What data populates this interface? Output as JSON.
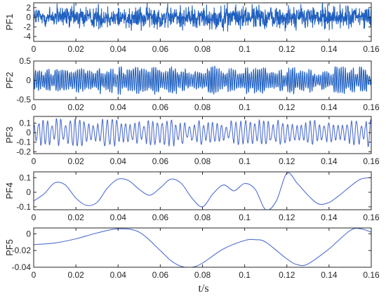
{
  "chart_data": [
    {
      "type": "line",
      "ylabel": "PF1",
      "xlim": [
        0,
        0.16
      ],
      "ylim": [
        -5,
        3
      ],
      "xticks": [
        "0",
        "0.02",
        "0.04",
        "0.06",
        "0.08",
        "0.1",
        "0.12",
        "0.14",
        "0.16"
      ],
      "yticks": [
        "2",
        "0",
        "-2",
        "-4"
      ],
      "ytick_values": [
        2,
        0,
        -2,
        -4
      ],
      "series": [
        {
          "color": "#1f5fbf",
          "style": "high-frequency noise",
          "amplitude": 2.2,
          "x_range": [
            0,
            0.16
          ],
          "points": 1200
        }
      ]
    },
    {
      "type": "line",
      "ylabel": "PF2",
      "xlim": [
        0,
        0.16
      ],
      "ylim": [
        -0.5,
        0.5
      ],
      "xticks": [
        "0",
        "0.02",
        "0.04",
        "0.06",
        "0.08",
        "0.1",
        "0.12",
        "0.14",
        "0.16"
      ],
      "yticks": [
        "0.5",
        "0",
        "-0.5"
      ],
      "ytick_values": [
        0.5,
        0,
        -0.5
      ],
      "series": [
        {
          "color": "#1f5fbf",
          "style": "oscillation",
          "amplitude": 0.3,
          "x_range": [
            0,
            0.16
          ],
          "points": 640
        }
      ]
    },
    {
      "type": "line",
      "ylabel": "PF3",
      "xlim": [
        0,
        0.16
      ],
      "ylim": [
        -0.22,
        0.17
      ],
      "xticks": [
        "0",
        "0.02",
        "0.04",
        "0.06",
        "0.08",
        "0.1",
        "0.12",
        "0.14",
        "0.16"
      ],
      "yticks": [
        "0.1",
        "0",
        "-0.1",
        "-0.2"
      ],
      "ytick_values": [
        0.1,
        0,
        -0.1,
        -0.2
      ],
      "series": [
        {
          "color": "#4f6fd0",
          "style": "oscillation",
          "amplitude": 0.12,
          "x_range": [
            0,
            0.16
          ],
          "points": 480
        }
      ]
    },
    {
      "type": "line",
      "ylabel": "PF4",
      "xlim": [
        0,
        0.16
      ],
      "ylim": [
        -0.12,
        0.14
      ],
      "xticks": [
        "0",
        "0.02",
        "0.04",
        "0.06",
        "0.08",
        "0.1",
        "0.12",
        "0.14",
        "0.16"
      ],
      "yticks": [
        "0.1",
        "0",
        "-0.1"
      ],
      "ytick_values": [
        0.1,
        0,
        -0.1
      ],
      "series": [
        {
          "color": "#4f6fd0",
          "style": "smooth",
          "x": [
            0,
            0.005,
            0.01,
            0.015,
            0.02,
            0.025,
            0.03,
            0.035,
            0.04,
            0.045,
            0.05,
            0.055,
            0.06,
            0.065,
            0.07,
            0.075,
            0.08,
            0.085,
            0.09,
            0.095,
            0.1,
            0.105,
            0.11,
            0.115,
            0.12,
            0.125,
            0.13,
            0.135,
            0.14,
            0.145,
            0.15,
            0.155,
            0.16
          ],
          "y": [
            -0.06,
            -0.01,
            0.065,
            0.05,
            -0.04,
            -0.09,
            -0.07,
            0.03,
            0.09,
            0.08,
            0.02,
            -0.02,
            0.03,
            0.09,
            0.06,
            -0.04,
            -0.1,
            -0.01,
            0.05,
            0.01,
            0.06,
            0.02,
            -0.12,
            -0.06,
            0.13,
            0.06,
            -0.02,
            -0.08,
            -0.07,
            -0.02,
            0.04,
            0.09,
            0.1
          ]
        }
      ]
    },
    {
      "type": "line",
      "ylabel": "PF5",
      "xlim": [
        0,
        0.16
      ],
      "ylim": [
        -0.04,
        0.007
      ],
      "xticks": [
        "0",
        "0.02",
        "0.04",
        "0.06",
        "0.08",
        "0.1",
        "0.12",
        "0.14",
        "0.16"
      ],
      "yticks": [
        "0",
        "-0.02",
        "-0.04"
      ],
      "ytick_values": [
        0,
        -0.02,
        -0.04
      ],
      "series": [
        {
          "color": "#4f6fd0",
          "style": "smooth",
          "x": [
            0,
            0.01,
            0.02,
            0.03,
            0.04,
            0.05,
            0.06,
            0.065,
            0.07,
            0.075,
            0.08,
            0.09,
            0.1,
            0.105,
            0.11,
            0.12,
            0.125,
            0.13,
            0.14,
            0.15,
            0.155,
            0.16
          ],
          "y": [
            -0.013,
            -0.011,
            -0.006,
            0.001,
            0.006,
            0.002,
            -0.02,
            -0.032,
            -0.039,
            -0.04,
            -0.035,
            -0.018,
            -0.008,
            -0.007,
            -0.01,
            -0.03,
            -0.037,
            -0.036,
            -0.018,
            0.004,
            0.006,
            0.002
          ]
        }
      ]
    }
  ],
  "xlabel": "t/s"
}
